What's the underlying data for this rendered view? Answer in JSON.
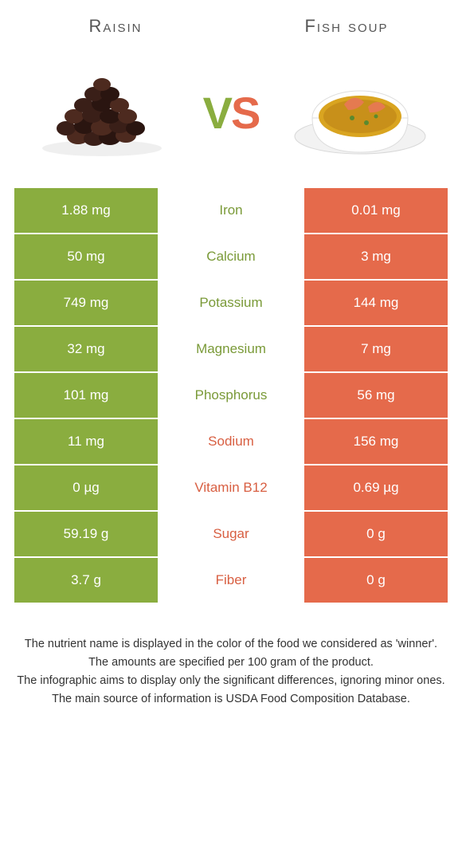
{
  "header": {
    "left_title": "Raisin",
    "right_title": "Fish soup"
  },
  "vs": {
    "v": "V",
    "s": "S"
  },
  "colors": {
    "left": "#8aad3f",
    "right": "#e56a4b",
    "left_text": "#7a9a38",
    "right_text": "#d85f42"
  },
  "rows": [
    {
      "left": "1.88 mg",
      "label": "Iron",
      "right": "0.01 mg",
      "winner": "left"
    },
    {
      "left": "50 mg",
      "label": "Calcium",
      "right": "3 mg",
      "winner": "left"
    },
    {
      "left": "749 mg",
      "label": "Potassium",
      "right": "144 mg",
      "winner": "left"
    },
    {
      "left": "32 mg",
      "label": "Magnesium",
      "right": "7 mg",
      "winner": "left"
    },
    {
      "left": "101 mg",
      "label": "Phosphorus",
      "right": "56 mg",
      "winner": "left"
    },
    {
      "left": "11 mg",
      "label": "Sodium",
      "right": "156 mg",
      "winner": "right"
    },
    {
      "left": "0 µg",
      "label": "Vitamin B12",
      "right": "0.69 µg",
      "winner": "right"
    },
    {
      "left": "59.19 g",
      "label": "Sugar",
      "right": "0 g",
      "winner": "right"
    },
    {
      "left": "3.7 g",
      "label": "Fiber",
      "right": "0 g",
      "winner": "right"
    }
  ],
  "footer": {
    "line1": "The nutrient name is displayed in the color of the food we considered as 'winner'.",
    "line2": "The amounts are specified per 100 gram of the product.",
    "line3": "The infographic aims to display only the significant differences, ignoring minor ones.",
    "line4": "The main source of information is USDA Food Composition Database."
  }
}
